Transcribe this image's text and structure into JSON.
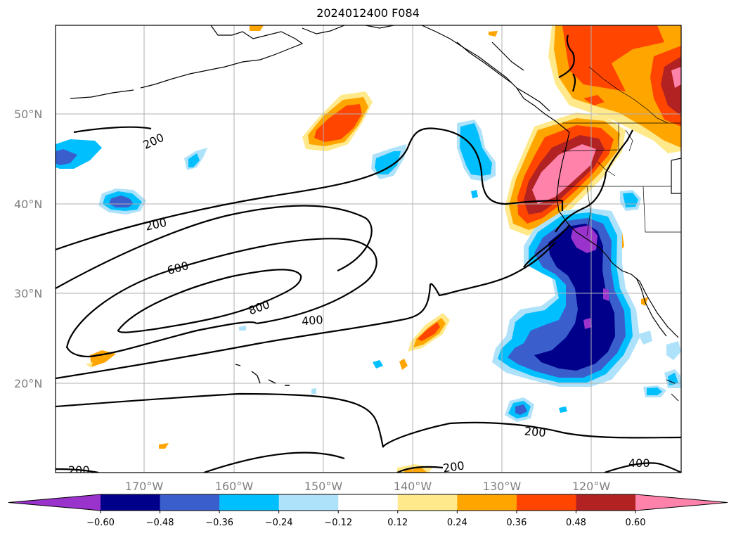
{
  "title": "2024012400 F084",
  "map": {
    "lat_labels": [
      "50°N",
      "40°N",
      "30°N",
      "20°N"
    ],
    "lon_labels": [
      "170°W",
      "160°W",
      "150°W",
      "140°W",
      "130°W",
      "120°W"
    ],
    "contour_labels": [
      {
        "text": "200"
      },
      {
        "text": "200"
      },
      {
        "text": "600"
      },
      {
        "text": "800"
      },
      {
        "text": "400"
      },
      {
        "text": "200"
      },
      {
        "text": "200"
      },
      {
        "text": "200"
      },
      {
        "text": "400"
      }
    ]
  },
  "colorbar": {
    "ticks": [
      "−0.60",
      "−0.48",
      "−0.36",
      "−0.24",
      "−0.12",
      "0.12",
      "0.24",
      "0.36",
      "0.48",
      "0.60"
    ],
    "colors": [
      "#9933cc",
      "#00008b",
      "#3a5fcd",
      "#00bfff",
      "#aee2fa",
      "#ffffff",
      "#ffe98a",
      "#ffa500",
      "#ff4500",
      "#b22222",
      "#ff82ab"
    ]
  }
}
